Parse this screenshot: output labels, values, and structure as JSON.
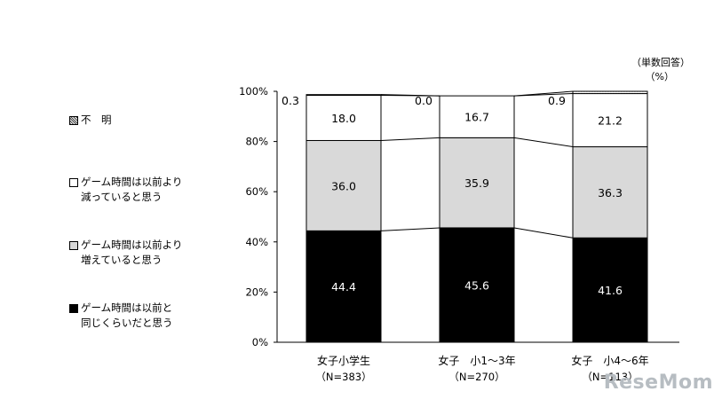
{
  "note": {
    "line1": "（単数回答）",
    "line2": "（%）"
  },
  "watermark": "ReseMom",
  "legend": [
    {
      "label": "不　明",
      "color": "#a0a0a0",
      "pattern": "dotted"
    },
    {
      "label": "ゲーム時間は以前より\n減っていると思う",
      "color": "#ffffff"
    },
    {
      "label": "ゲーム時間は以前より\n増えていると思う",
      "color": "#d9d9d9"
    },
    {
      "label": "ゲーム時間は以前と\n同じくらいだと思う",
      "color": "#000000"
    }
  ],
  "chart_data": {
    "type": "bar",
    "stacked": true,
    "percent": true,
    "categories": [
      "女子小学生",
      "女子　小1～3年",
      "女子　小4～6年"
    ],
    "sublabels": [
      "（N=383）",
      "（N=270）",
      "（N=113）"
    ],
    "series": [
      {
        "name": "ゲーム時間は以前と同じくらいだと思う",
        "values": [
          44.4,
          45.6,
          41.6
        ],
        "color": "#000000",
        "label_color": "#ffffff"
      },
      {
        "name": "ゲーム時間は以前より増えていると思う",
        "values": [
          36.0,
          35.9,
          36.3
        ],
        "color": "#d9d9d9",
        "label_color": "#000000"
      },
      {
        "name": "ゲーム時間は以前より減っていると思う",
        "values": [
          18.0,
          16.7,
          21.2
        ],
        "color": "#ffffff",
        "label_color": "#000000"
      },
      {
        "name": "不　明",
        "values": [
          0.3,
          0.0,
          0.9
        ],
        "color": "#a0a0a0",
        "label_color": "#000000"
      }
    ],
    "yticks": [
      "0%",
      "20%",
      "40%",
      "60%",
      "80%",
      "100%"
    ],
    "ylim": [
      0,
      100
    ],
    "grid": false,
    "legend_position": "left"
  }
}
